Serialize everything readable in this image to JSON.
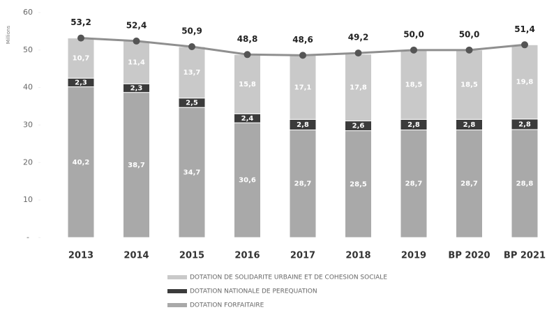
{
  "chart_data": {
    "type": "bar",
    "stacked": true,
    "y_label": "Millions",
    "categories": [
      "2013",
      "2014",
      "2015",
      "2016",
      "2017",
      "2018",
      "2019",
      "BP 2020",
      "BP 2021"
    ],
    "series": [
      {
        "name": "DOTATION FORFAITAIRE",
        "color": "#a9a9a9",
        "values": [
          40.2,
          38.7,
          34.7,
          30.6,
          28.7,
          28.5,
          28.7,
          28.7,
          28.8
        ],
        "value_labels": [
          "40,2",
          "38,7",
          "34,7",
          "30,6",
          "28,7",
          "28,5",
          "28,7",
          "28,7",
          "28,8"
        ]
      },
      {
        "name": "DOTATION NATIONALE DE PEREQUATION",
        "color": "#3b3b3b",
        "values": [
          2.3,
          2.3,
          2.5,
          2.4,
          2.8,
          2.6,
          2.8,
          2.8,
          2.8
        ],
        "value_labels": [
          "2,3",
          "2,3",
          "2,5",
          "2,4",
          "2,8",
          "2,6",
          "2,8",
          "2,8",
          "2,8"
        ]
      },
      {
        "name": "DOTATION DE SOLIDARITE URBAINE ET DE COHESION SOCIALE",
        "color": "#c9c9c9",
        "values": [
          10.7,
          11.4,
          13.7,
          15.8,
          17.1,
          17.8,
          18.5,
          18.5,
          19.8
        ],
        "value_labels": [
          "10,7",
          "11,4",
          "13,7",
          "15,8",
          "17,1",
          "17,8",
          "18,5",
          "18,5",
          "19,8"
        ]
      }
    ],
    "totals": {
      "color": "#8f8f8f",
      "values": [
        53.2,
        52.4,
        50.9,
        48.8,
        48.6,
        49.2,
        50.0,
        50.0,
        51.4
      ],
      "value_labels": [
        "53,2",
        "52,4",
        "50,9",
        "48,8",
        "48,6",
        "49,2",
        "50,0",
        "50,0",
        "51,4"
      ]
    },
    "ylim": [
      0,
      60
    ],
    "yticks": [
      {
        "value": 0,
        "label": "-"
      },
      10,
      20,
      30,
      40,
      50,
      60
    ]
  }
}
